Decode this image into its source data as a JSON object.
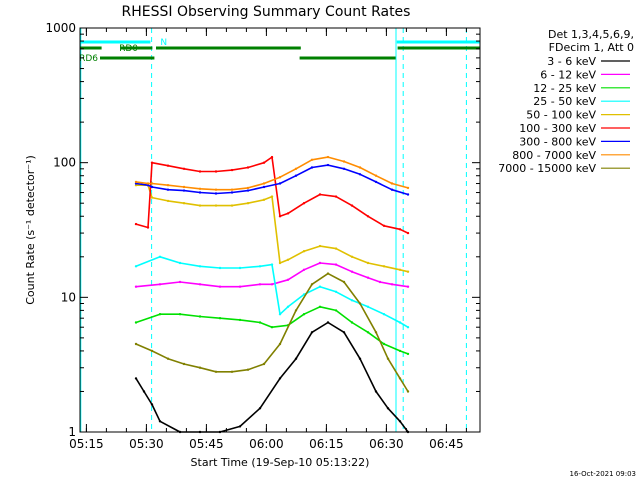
{
  "chart_data": {
    "type": "line",
    "title": "RHESSI Observing Summary Count Rates",
    "xlabel": "Start Time (19-Sep-10 05:13:22)",
    "ylabel": "Count Rate (s⁻¹ detector⁻¹)",
    "yscale": "log",
    "ylim": [
      1,
      1000
    ],
    "xlim_minutes": [
      0,
      100
    ],
    "x_ticks": [
      {
        "minute": 1.6,
        "label": "05:15"
      },
      {
        "minute": 16.6,
        "label": "05:30"
      },
      {
        "minute": 31.6,
        "label": "05:45"
      },
      {
        "minute": 46.6,
        "label": "06:00"
      },
      {
        "minute": 61.6,
        "label": "06:15"
      },
      {
        "minute": 76.6,
        "label": "06:30"
      },
      {
        "minute": 91.6,
        "label": "06:45"
      }
    ],
    "y_ticks": [
      {
        "value": 1,
        "label": "1"
      },
      {
        "value": 10,
        "label": "10"
      },
      {
        "value": 100,
        "label": "100"
      },
      {
        "value": 1000,
        "label": "1000"
      }
    ],
    "legend_header": [
      "Det 1,3,4,5,6,9,",
      "FDecim 1, Att 0"
    ],
    "legend_position": "right",
    "series": [
      {
        "name": "3 - 6 keV",
        "color": "#000000",
        "points": [
          [
            14,
            2.5
          ],
          [
            16,
            2.0
          ],
          [
            18,
            1.6
          ],
          [
            20,
            1.2
          ],
          [
            25,
            1.0
          ],
          [
            30,
            1.0
          ],
          [
            35,
            1.0
          ],
          [
            40,
            1.1
          ],
          [
            45,
            1.5
          ],
          [
            50,
            2.5
          ],
          [
            54,
            3.5
          ],
          [
            58,
            5.5
          ],
          [
            62,
            6.5
          ],
          [
            66,
            5.5
          ],
          [
            70,
            3.5
          ],
          [
            74,
            2.0
          ],
          [
            77,
            1.5
          ],
          [
            80,
            1.2
          ],
          [
            82,
            1.0
          ]
        ]
      },
      {
        "name": "6 - 12 keV",
        "color": "#ff00ff",
        "points": [
          [
            14,
            12
          ],
          [
            20,
            12.5
          ],
          [
            25,
            13
          ],
          [
            30,
            12.5
          ],
          [
            35,
            12
          ],
          [
            40,
            12
          ],
          [
            45,
            12.5
          ],
          [
            48,
            12.5
          ],
          [
            52,
            13.5
          ],
          [
            56,
            16
          ],
          [
            60,
            18
          ],
          [
            64,
            17.5
          ],
          [
            68,
            15.5
          ],
          [
            72,
            14
          ],
          [
            75,
            13
          ],
          [
            78,
            12.5
          ],
          [
            82,
            12
          ]
        ]
      },
      {
        "name": "12 - 25 keV",
        "color": "#00e000",
        "points": [
          [
            14,
            6.5
          ],
          [
            20,
            7.5
          ],
          [
            25,
            7.5
          ],
          [
            30,
            7.2
          ],
          [
            35,
            7.0
          ],
          [
            40,
            6.8
          ],
          [
            45,
            6.5
          ],
          [
            48,
            6.0
          ],
          [
            52,
            6.2
          ],
          [
            56,
            7.5
          ],
          [
            60,
            8.5
          ],
          [
            64,
            8.0
          ],
          [
            68,
            6.5
          ],
          [
            72,
            5.5
          ],
          [
            76,
            4.5
          ],
          [
            80,
            4.0
          ],
          [
            82,
            3.8
          ]
        ]
      },
      {
        "name": "25 - 50 keV",
        "color": "#00ffff",
        "points": [
          [
            14,
            17
          ],
          [
            20,
            20
          ],
          [
            25,
            18
          ],
          [
            30,
            17
          ],
          [
            35,
            16.5
          ],
          [
            40,
            16.5
          ],
          [
            45,
            17
          ],
          [
            48,
            17.5
          ],
          [
            50,
            7.5
          ],
          [
            52,
            8.5
          ],
          [
            56,
            10.5
          ],
          [
            60,
            12
          ],
          [
            64,
            11
          ],
          [
            68,
            9.5
          ],
          [
            72,
            8.5
          ],
          [
            76,
            7.5
          ],
          [
            80,
            6.5
          ],
          [
            82,
            6.0
          ]
        ]
      },
      {
        "name": "50 - 100 keV",
        "color": "#e0c000",
        "points": [
          [
            14,
            68
          ],
          [
            17,
            68
          ],
          [
            18,
            55
          ],
          [
            22,
            52
          ],
          [
            26,
            50
          ],
          [
            30,
            48
          ],
          [
            34,
            48
          ],
          [
            38,
            48
          ],
          [
            42,
            50
          ],
          [
            46,
            53
          ],
          [
            48,
            56
          ],
          [
            50,
            18
          ],
          [
            52,
            19
          ],
          [
            56,
            22
          ],
          [
            60,
            24
          ],
          [
            64,
            23
          ],
          [
            68,
            20
          ],
          [
            72,
            18
          ],
          [
            76,
            17
          ],
          [
            80,
            16
          ],
          [
            82,
            15.5
          ]
        ]
      },
      {
        "name": "100 - 300 keV",
        "color": "#ff0000",
        "points": [
          [
            14,
            35
          ],
          [
            17,
            33
          ],
          [
            18,
            100
          ],
          [
            22,
            95
          ],
          [
            26,
            90
          ],
          [
            30,
            86
          ],
          [
            34,
            86
          ],
          [
            38,
            88
          ],
          [
            42,
            92
          ],
          [
            46,
            100
          ],
          [
            48,
            110
          ],
          [
            50,
            40
          ],
          [
            52,
            42
          ],
          [
            56,
            50
          ],
          [
            60,
            58
          ],
          [
            64,
            56
          ],
          [
            68,
            48
          ],
          [
            72,
            40
          ],
          [
            76,
            34
          ],
          [
            80,
            32
          ],
          [
            82,
            30
          ]
        ]
      },
      {
        "name": "300 - 800 keV",
        "color": "#0000ff",
        "points": [
          [
            14,
            70
          ],
          [
            17,
            68
          ],
          [
            18,
            66
          ],
          [
            22,
            63
          ],
          [
            26,
            62
          ],
          [
            30,
            60
          ],
          [
            34,
            59
          ],
          [
            38,
            60
          ],
          [
            42,
            62
          ],
          [
            46,
            66
          ],
          [
            50,
            70
          ],
          [
            54,
            80
          ],
          [
            58,
            92
          ],
          [
            62,
            96
          ],
          [
            66,
            90
          ],
          [
            70,
            82
          ],
          [
            74,
            72
          ],
          [
            78,
            63
          ],
          [
            82,
            58
          ]
        ]
      },
      {
        "name": "800 - 7000 keV",
        "color": "#ff8c00",
        "points": [
          [
            14,
            72
          ],
          [
            17,
            70
          ],
          [
            18,
            70
          ],
          [
            22,
            68
          ],
          [
            26,
            66
          ],
          [
            30,
            64
          ],
          [
            34,
            63
          ],
          [
            38,
            63
          ],
          [
            42,
            65
          ],
          [
            46,
            70
          ],
          [
            50,
            78
          ],
          [
            54,
            90
          ],
          [
            58,
            105
          ],
          [
            62,
            110
          ],
          [
            66,
            102
          ],
          [
            70,
            92
          ],
          [
            74,
            80
          ],
          [
            78,
            70
          ],
          [
            82,
            65
          ]
        ]
      },
      {
        "name": "7000 - 15000 keV",
        "color": "#808000",
        "points": [
          [
            14,
            4.5
          ],
          [
            18,
            4.0
          ],
          [
            22,
            3.5
          ],
          [
            26,
            3.2
          ],
          [
            30,
            3.0
          ],
          [
            34,
            2.8
          ],
          [
            38,
            2.8
          ],
          [
            42,
            2.9
          ],
          [
            46,
            3.2
          ],
          [
            50,
            4.5
          ],
          [
            54,
            8.0
          ],
          [
            58,
            12.5
          ],
          [
            62,
            15
          ],
          [
            66,
            13
          ],
          [
            70,
            9
          ],
          [
            74,
            5.5
          ],
          [
            77,
            3.5
          ],
          [
            80,
            2.5
          ],
          [
            82,
            2.0
          ]
        ]
      }
    ],
    "observing_bars": [
      {
        "label": "N",
        "color": "#00ffff",
        "start": 0,
        "end": 17.6
      },
      {
        "label": "",
        "color": "#00ffff",
        "start": 79.2,
        "end": 100
      },
      {
        "label": "RD0",
        "color": "#008000",
        "start": 0,
        "end": 5.4
      },
      {
        "label": "",
        "color": "#008000",
        "start": 10.2,
        "end": 18.1
      },
      {
        "label": "",
        "color": "#008000",
        "start": 19.0,
        "end": 55.2
      },
      {
        "label": "",
        "color": "#008000",
        "start": 79.4,
        "end": 100
      },
      {
        "label": "RD6",
        "color": "#008000",
        "start": 5.0,
        "end": 18.6
      },
      {
        "label": "",
        "color": "#008000",
        "start": 54.9,
        "end": 78.9
      }
    ],
    "vertical_lines": [
      {
        "minute": 0.2,
        "style": "solid",
        "color": "#00ffff"
      },
      {
        "minute": 17.9,
        "style": "dashed",
        "color": "#00ffff"
      },
      {
        "minute": 79.0,
        "style": "solid",
        "color": "#00ffff"
      },
      {
        "minute": 80.8,
        "style": "dashed",
        "color": "#00ffff"
      },
      {
        "minute": 96.6,
        "style": "dashed",
        "color": "#00ffff"
      }
    ],
    "footer_stamp": "16-Oct-2021 09:03"
  }
}
